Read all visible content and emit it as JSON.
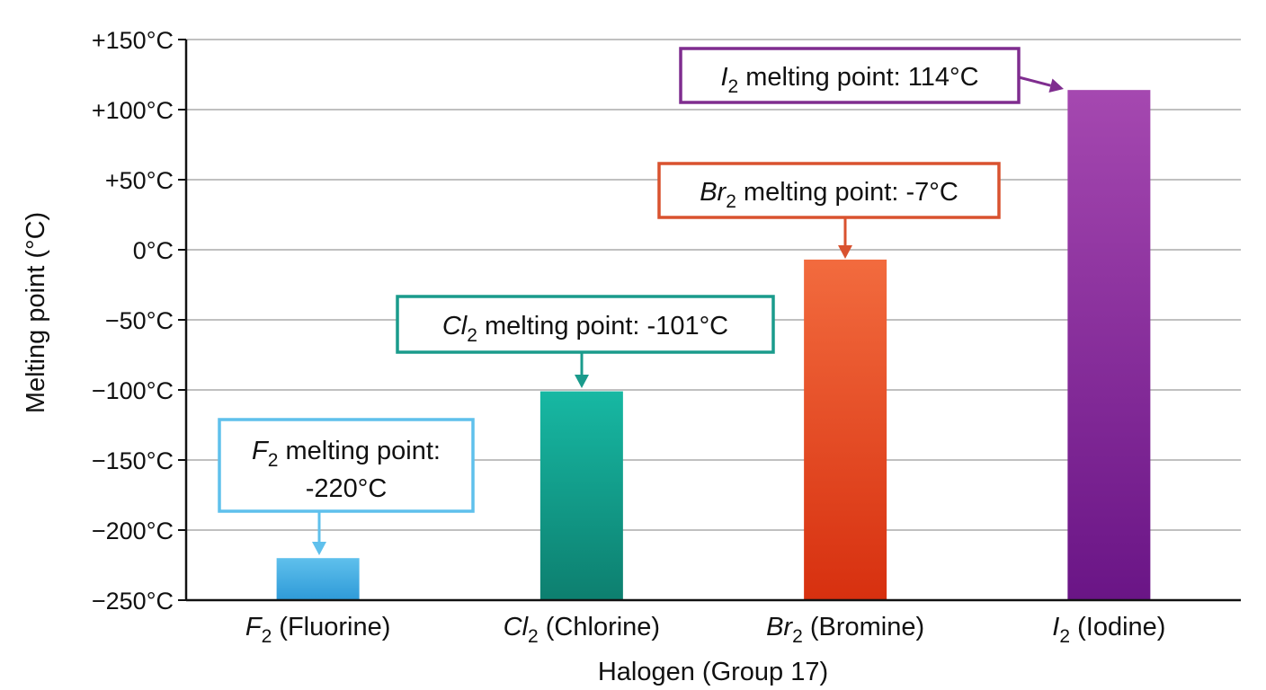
{
  "chart_data": {
    "type": "bar",
    "xlabel": "Halogen (Group 17)",
    "ylabel": "Melting point (°C)",
    "ylim": [
      -250,
      150
    ],
    "yticks": [
      150,
      100,
      50,
      0,
      -50,
      -100,
      -150,
      -200,
      -250
    ],
    "ytick_labels": [
      "+150°C",
      "+100°C",
      "+50°C",
      "0°C",
      "−50°C",
      "−100°C",
      "−150°C",
      "−200°C",
      "−250°C"
    ],
    "grid": true,
    "categories": [
      {
        "formula": "F",
        "sub": "2",
        "name": " (Fluorine)"
      },
      {
        "formula": "Cl",
        "sub": "2",
        "name": " (Chlorine)"
      },
      {
        "formula": "Br",
        "sub": "2",
        "name": " (Bromine)"
      },
      {
        "formula": "I",
        "sub": "2",
        "name": " (Iodine)"
      }
    ],
    "values": [
      -220,
      -101,
      -7,
      114
    ],
    "colors": [
      {
        "top": "#5fc0ec",
        "bottom": "#2e9ad8"
      },
      {
        "top": "#17b8a3",
        "bottom": "#0d7f6f"
      },
      {
        "top": "#f26b3e",
        "bottom": "#d7300f"
      },
      {
        "top": "#a548b0",
        "bottom": "#6a1586"
      }
    ],
    "annotations": [
      {
        "formula": "F",
        "sub": "2",
        "line1": " melting point:",
        "line2": "-220°C",
        "color": "#5fc0ec"
      },
      {
        "formula": "Cl",
        "sub": "2",
        "line1": " melting point: -101°C",
        "line2": "",
        "color": "#1a9b8c"
      },
      {
        "formula": "Br",
        "sub": "2",
        "line1": " melting point: -7°C",
        "line2": "",
        "color": "#d9522f"
      },
      {
        "formula": "I",
        "sub": "2",
        "line1": " melting point: 114°C",
        "line2": "",
        "color": "#7f2d8f"
      }
    ]
  }
}
